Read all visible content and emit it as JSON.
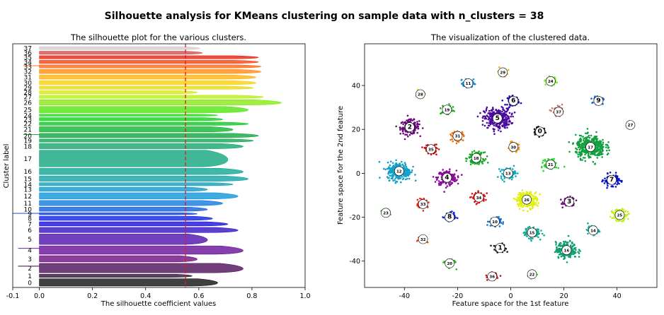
{
  "figure": {
    "suptitle": "Silhouette analysis for KMeans clustering on sample data with n_clusters = 38"
  },
  "chart_data": [
    {
      "type": "bar",
      "subtype": "silhouette",
      "title": "The silhouette plot for the various clusters.",
      "xlabel": "The silhouette coefficient values",
      "ylabel": "Cluster label",
      "xlim": [
        -0.1,
        1.0
      ],
      "xticks": [
        "-0.1",
        "0.0",
        "0.2",
        "0.4",
        "0.6",
        "0.8",
        "1.0"
      ],
      "average_silhouette": 0.55,
      "average_line_color": "#e41a1c",
      "clusters": [
        {
          "label": "0",
          "size": 7,
          "max": 0.7,
          "min_neg": 0.0
        },
        {
          "label": "1",
          "size": 3,
          "max": 0.6,
          "min_neg": 0.0
        },
        {
          "label": "2",
          "size": 9,
          "max": 0.8,
          "min_neg": -0.08
        },
        {
          "label": "3",
          "size": 6,
          "max": 0.62,
          "min_neg": 0.0
        },
        {
          "label": "4",
          "size": 8,
          "max": 0.8,
          "min_neg": -0.08
        },
        {
          "label": "5",
          "size": 10,
          "max": 0.66,
          "min_neg": 0.0
        },
        {
          "label": "6",
          "size": 5,
          "max": 0.78,
          "min_neg": 0.0
        },
        {
          "label": "7",
          "size": 4,
          "max": 0.74,
          "min_neg": 0.0
        },
        {
          "label": "8",
          "size": 4,
          "max": 0.68,
          "min_neg": 0.0
        },
        {
          "label": "9",
          "size": 2,
          "max": 0.62,
          "min_neg": -0.1
        },
        {
          "label": "10",
          "size": 4,
          "max": 0.66,
          "min_neg": 0.0
        },
        {
          "label": "11",
          "size": 5,
          "max": 0.72,
          "min_neg": 0.0
        },
        {
          "label": "12",
          "size": 6,
          "max": 0.78,
          "min_neg": 0.0
        },
        {
          "label": "13",
          "size": 4,
          "max": 0.66,
          "min_neg": 0.0
        },
        {
          "label": "14",
          "size": 3,
          "max": 0.76,
          "min_neg": 0.0
        },
        {
          "label": "15",
          "size": 5,
          "max": 0.82,
          "min_neg": 0.0
        },
        {
          "label": "16",
          "size": 6,
          "max": 0.8,
          "min_neg": 0.0
        },
        {
          "label": "17",
          "size": 16,
          "max": 0.74,
          "min_neg": 0.0
        },
        {
          "label": "18",
          "size": 5,
          "max": 0.8,
          "min_neg": 0.0
        },
        {
          "label": "19",
          "size": 3,
          "max": 0.84,
          "min_neg": 0.0
        },
        {
          "label": "20",
          "size": 4,
          "max": 0.86,
          "min_neg": -0.06
        },
        {
          "label": "21",
          "size": 5,
          "max": 0.76,
          "min_neg": 0.0
        },
        {
          "label": "22",
          "size": 3,
          "max": 0.82,
          "min_neg": 0.0
        },
        {
          "label": "23",
          "size": 3,
          "max": 0.72,
          "min_neg": 0.0
        },
        {
          "label": "24",
          "size": 2,
          "max": 0.7,
          "min_neg": 0.0
        },
        {
          "label": "25",
          "size": 6,
          "max": 0.82,
          "min_neg": 0.0
        },
        {
          "label": "26",
          "size": 5,
          "max": 0.95,
          "min_neg": 0.0
        },
        {
          "label": "27",
          "size": 3,
          "max": 0.88,
          "min_neg": 0.0
        },
        {
          "label": "28",
          "size": 3,
          "max": 0.62,
          "min_neg": 0.0
        },
        {
          "label": "29",
          "size": 3,
          "max": 0.84,
          "min_neg": 0.0
        },
        {
          "label": "30",
          "size": 4,
          "max": 0.85,
          "min_neg": 0.0
        },
        {
          "label": "31",
          "size": 4,
          "max": 0.85,
          "min_neg": 0.0
        },
        {
          "label": "32",
          "size": 4,
          "max": 0.87,
          "min_neg": 0.0
        },
        {
          "label": "33",
          "size": 3,
          "max": 0.87,
          "min_neg": -0.06
        },
        {
          "label": "34",
          "size": 3,
          "max": 0.86,
          "min_neg": 0.0
        },
        {
          "label": "35",
          "size": 3,
          "max": 0.86,
          "min_neg": 0.0
        },
        {
          "label": "36",
          "size": 3,
          "max": 0.64,
          "min_neg": 0.0
        },
        {
          "label": "37",
          "size": 3,
          "max": 0.63,
          "min_neg": 0.0
        }
      ]
    },
    {
      "type": "scatter",
      "title": "The visualization of the clustered data.",
      "xlabel": "Feature space for the 1st feature",
      "ylabel": "Feature space for the 2nd feature",
      "xlim": [
        -55,
        55
      ],
      "ylim": [
        -52,
        59
      ],
      "xticks": [
        "-40",
        "-20",
        "0",
        "20",
        "40"
      ],
      "yticks": [
        "-40",
        "-20",
        "0",
        "20",
        "40"
      ],
      "centers": [
        {
          "label": "0",
          "x": 11,
          "y": 19,
          "color": "#111111",
          "r": 1.8,
          "n": 110
        },
        {
          "label": "1",
          "x": -4,
          "y": -34,
          "color": "#2a0a2a",
          "r": 1.8,
          "n": 90
        },
        {
          "label": "2",
          "x": -38,
          "y": 21,
          "color": "#6a0a7a",
          "r": 3.2,
          "n": 200
        },
        {
          "label": "3",
          "x": 22,
          "y": -13,
          "color": "#7a0a8a",
          "r": 2.0,
          "n": 90
        },
        {
          "label": "4",
          "x": -24,
          "y": -2,
          "color": "#8a0a9a",
          "r": 3.2,
          "n": 220
        },
        {
          "label": "5",
          "x": -5,
          "y": 25,
          "color": "#4a0aa0",
          "r": 4.5,
          "n": 330
        },
        {
          "label": "6",
          "x": 1,
          "y": 33,
          "color": "#1a0ab0",
          "r": 2.0,
          "n": 90
        },
        {
          "label": "7",
          "x": 38,
          "y": -3,
          "color": "#0a10d0",
          "r": 2.5,
          "n": 150
        },
        {
          "label": "8",
          "x": -23,
          "y": -20,
          "color": "#1020e0",
          "r": 1.8,
          "n": 90
        },
        {
          "label": "9",
          "x": 33,
          "y": 33,
          "color": "#1060e0",
          "r": 1.6,
          "n": 80
        },
        {
          "label": "10",
          "x": -6,
          "y": -22,
          "color": "#1070d0",
          "r": 2.0,
          "n": 90
        },
        {
          "label": "11",
          "x": -16,
          "y": 41,
          "color": "#1090d8",
          "r": 1.8,
          "n": 90
        },
        {
          "label": "12",
          "x": -42,
          "y": 1,
          "color": "#10a0c8",
          "r": 4.0,
          "n": 300
        },
        {
          "label": "13",
          "x": -1,
          "y": 0,
          "color": "#10a8b8",
          "r": 2.5,
          "n": 110
        },
        {
          "label": "14",
          "x": 31,
          "y": -26,
          "color": "#10a8a0",
          "r": 1.8,
          "n": 90
        },
        {
          "label": "15",
          "x": 8,
          "y": -27,
          "color": "#10a890",
          "r": 2.5,
          "n": 150
        },
        {
          "label": "16",
          "x": 21,
          "y": -35,
          "color": "#10a070",
          "r": 3.6,
          "n": 230
        },
        {
          "label": "17",
          "x": 30,
          "y": 12,
          "color": "#10a040",
          "r": 5.0,
          "n": 420
        },
        {
          "label": "18",
          "x": -13,
          "y": 7,
          "color": "#10a820",
          "r": 2.5,
          "n": 150
        },
        {
          "label": "19",
          "x": -24,
          "y": 29,
          "color": "#10b010",
          "r": 1.8,
          "n": 90
        },
        {
          "label": "20",
          "x": -23,
          "y": -41,
          "color": "#20c010",
          "r": 1.8,
          "n": 80
        },
        {
          "label": "21",
          "x": 15,
          "y": 4,
          "color": "#20d820",
          "r": 2.2,
          "n": 110
        },
        {
          "label": "22",
          "x": 8,
          "y": -46,
          "color": "#40e020",
          "r": 1.4,
          "n": 60
        },
        {
          "label": "23",
          "x": -47,
          "y": -18,
          "color": "#40e820",
          "r": 1.4,
          "n": 60
        },
        {
          "label": "24",
          "x": 15,
          "y": 42,
          "color": "#70f020",
          "r": 1.8,
          "n": 80
        },
        {
          "label": "25",
          "x": 41,
          "y": -19,
          "color": "#c0f020",
          "r": 2.5,
          "n": 150
        },
        {
          "label": "26",
          "x": 6,
          "y": -12,
          "color": "#e0f010",
          "r": 3.6,
          "n": 230
        },
        {
          "label": "27",
          "x": 45,
          "y": 22,
          "color": "#f0e010",
          "r": 1.2,
          "n": 40
        },
        {
          "label": "28",
          "x": -34,
          "y": 36,
          "color": "#f0d010",
          "r": 1.4,
          "n": 60
        },
        {
          "label": "29",
          "x": -3,
          "y": 46,
          "color": "#f0b010",
          "r": 1.6,
          "n": 80
        },
        {
          "label": "30",
          "x": 1,
          "y": 12,
          "color": "#f09010",
          "r": 1.8,
          "n": 90
        },
        {
          "label": "31",
          "x": -20,
          "y": 17,
          "color": "#f07010",
          "r": 2.0,
          "n": 100
        },
        {
          "label": "32",
          "x": -33,
          "y": -30,
          "color": "#f04010",
          "r": 1.6,
          "n": 80
        },
        {
          "label": "33",
          "x": -33,
          "y": -14,
          "color": "#f02010",
          "r": 1.8,
          "n": 90
        },
        {
          "label": "34",
          "x": -12,
          "y": -11,
          "color": "#e01010",
          "r": 2.2,
          "n": 110
        },
        {
          "label": "35",
          "x": -30,
          "y": 11,
          "color": "#d01010",
          "r": 2.0,
          "n": 100
        },
        {
          "label": "36",
          "x": -7,
          "y": -47,
          "color": "#c01010",
          "r": 1.6,
          "n": 70
        },
        {
          "label": "37",
          "x": 18,
          "y": 28,
          "color": "#c87878",
          "r": 2.0,
          "n": 90
        }
      ]
    }
  ]
}
